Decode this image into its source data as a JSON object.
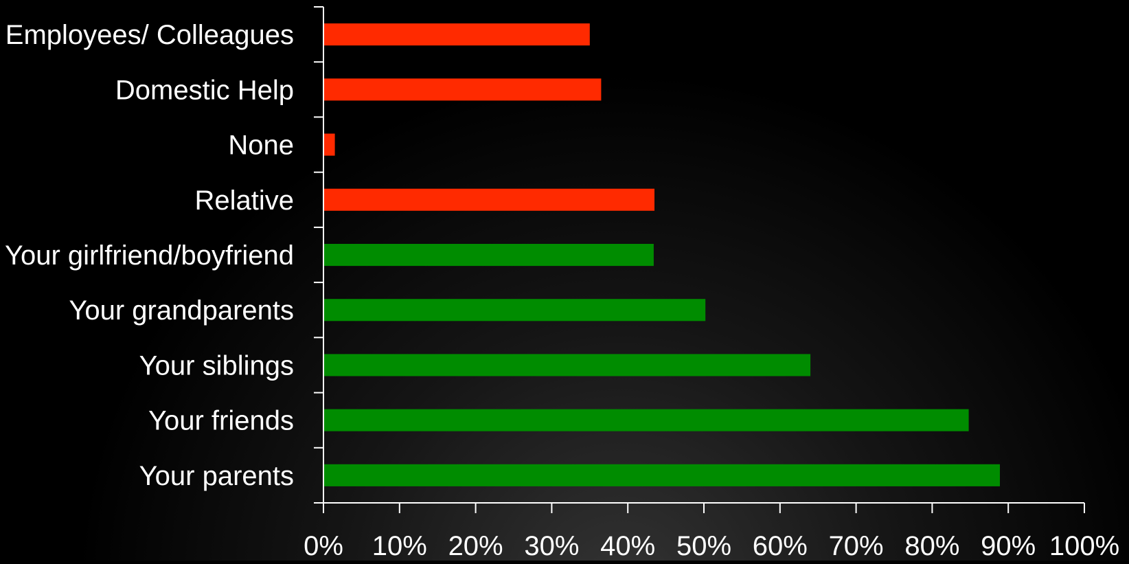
{
  "chart_data": {
    "type": "bar",
    "orientation": "horizontal",
    "categories": [
      "Employees/ Colleagues",
      "Domestic Help",
      "None",
      "Relative",
      "Your girlfriend/boyfriend",
      "Your grandparents",
      "Your siblings",
      "Your friends",
      "Your parents"
    ],
    "values": [
      35,
      36.5,
      1.5,
      43.5,
      43.4,
      50.2,
      64,
      84.8,
      88.9
    ],
    "bar_colors": [
      "#ff2a00",
      "#ff2a00",
      "#ff2a00",
      "#ff2a00",
      "#008c00",
      "#008c00",
      "#008c00",
      "#008c00",
      "#008c00"
    ],
    "xlim": [
      0,
      100
    ],
    "x_ticks": [
      "0%",
      "10%",
      "20%",
      "30%",
      "40%",
      "50%",
      "60%",
      "70%",
      "80%",
      "90%",
      "100%"
    ],
    "title": "",
    "xlabel": "",
    "ylabel": "",
    "grid": false,
    "legend": false,
    "background_color": "#000000",
    "text_color": "#ffffff",
    "axis_color": "#ffffff"
  }
}
